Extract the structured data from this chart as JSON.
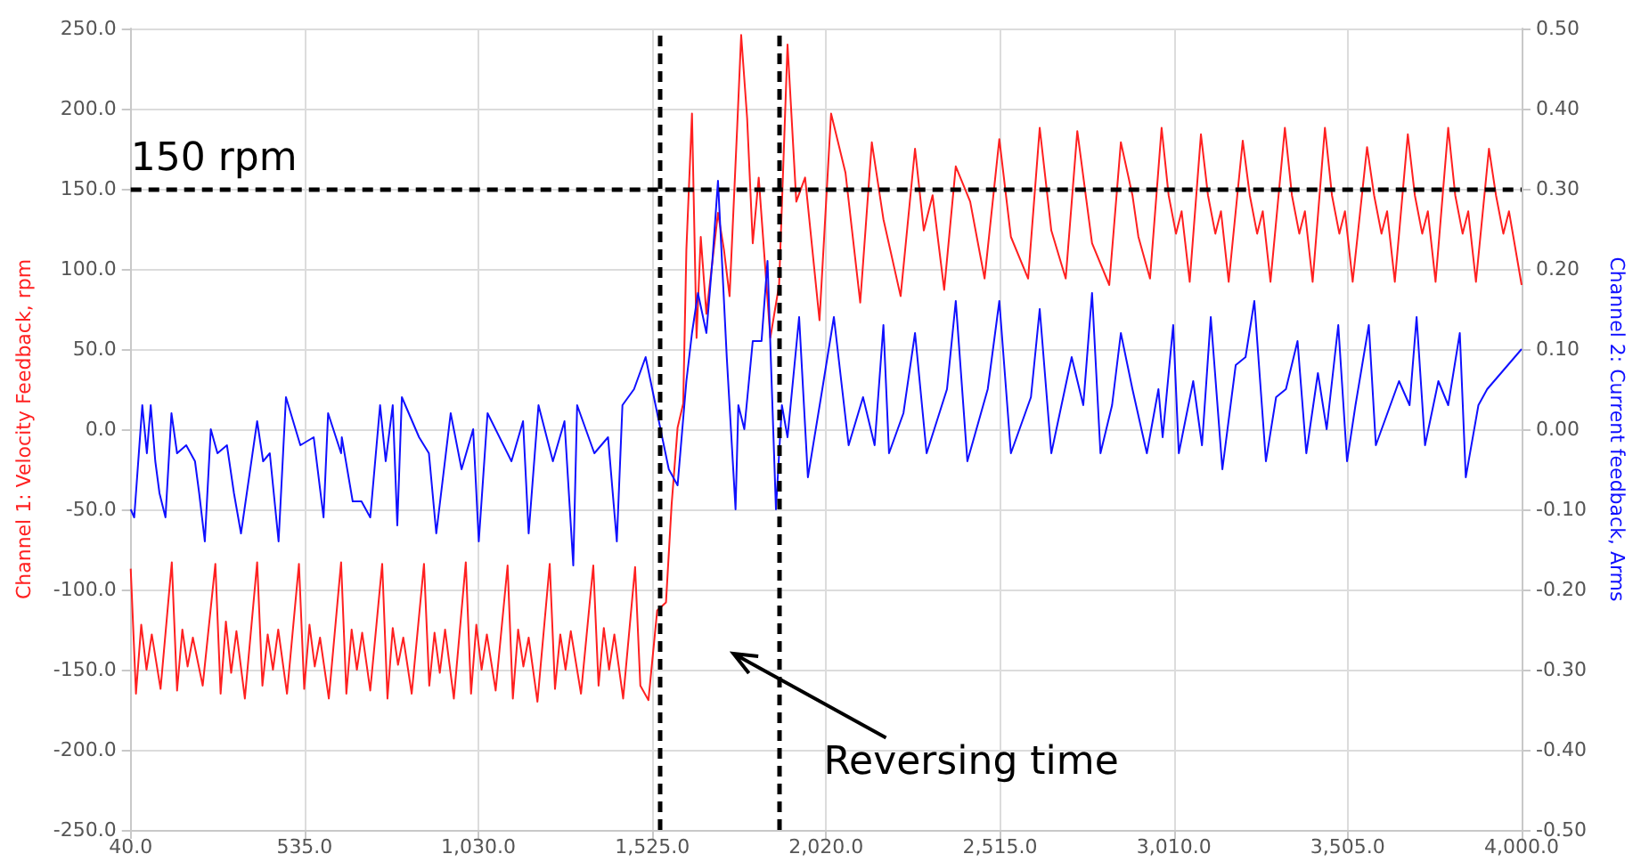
{
  "chart_data": {
    "type": "line",
    "xlabel": null,
    "ylabel": "Channel 1: Velocity Feedback, rpm",
    "y2label": "Channel 2: Current feedback, Arms",
    "annotations": [
      "Reversing time"
    ],
    "xlim": [
      40,
      4000
    ],
    "xticks": [
      {
        "value": 40,
        "label": "40.0"
      },
      {
        "value": 535,
        "label": "535.0"
      },
      {
        "value": 1030,
        "label": "1,030.0"
      },
      {
        "value": 1525,
        "label": "1,525.0"
      },
      {
        "value": 2020,
        "label": "2,020.0"
      },
      {
        "value": 2515,
        "label": "2,515.0"
      },
      {
        "value": 3010,
        "label": "3,010.0"
      },
      {
        "value": 3505,
        "label": "3,505.0"
      },
      {
        "value": 4000,
        "label": "4,000.0"
      }
    ],
    "ylim": [
      -250,
      250
    ],
    "yticks": [
      {
        "value": -250,
        "label": "-250.0"
      },
      {
        "value": -200,
        "label": "-200.0"
      },
      {
        "value": -150,
        "label": "-150.0"
      },
      {
        "value": -100,
        "label": "-100.0"
      },
      {
        "value": -50,
        "label": "-50.0"
      },
      {
        "value": 0,
        "label": "0.0"
      },
      {
        "value": 50,
        "label": "50.0"
      },
      {
        "value": 100,
        "label": "100.0"
      },
      {
        "value": 150,
        "label": "150.0"
      },
      {
        "value": 200,
        "label": "200.0"
      },
      {
        "value": 250,
        "label": "250.0"
      }
    ],
    "y2lim": [
      -0.5,
      0.5
    ],
    "y2ticks": [
      {
        "value": -0.5,
        "label": "-0.50"
      },
      {
        "value": -0.4,
        "label": "-0.40"
      },
      {
        "value": -0.3,
        "label": "-0.30"
      },
      {
        "value": -0.2,
        "label": "-0.20"
      },
      {
        "value": -0.1,
        "label": "-0.10"
      },
      {
        "value": 0,
        "label": "0.00"
      },
      {
        "value": 0.1,
        "label": "0.10"
      },
      {
        "value": 0.2,
        "label": "0.20"
      },
      {
        "value": 0.3,
        "label": "0.30"
      },
      {
        "value": 0.4,
        "label": "0.40"
      },
      {
        "value": 0.5,
        "label": "0.50"
      }
    ],
    "grid": true,
    "marker": "none",
    "line_style": "solid",
    "ref_lines": [
      {
        "axis": "y",
        "value": 150,
        "label": "150 rpm",
        "color": "#000000",
        "line_style": "dashed"
      },
      {
        "axis": "x",
        "value": 1545,
        "label": null,
        "color": "#000000",
        "line_style": "dashed"
      },
      {
        "axis": "x",
        "value": 1886,
        "label": null,
        "color": "#000000",
        "line_style": "dashed"
      }
    ],
    "series": [
      {
        "color": "#ff2020",
        "x": [
          40,
          55,
          70,
          85,
          100,
          125,
          157,
          172,
          187,
          202,
          217,
          245,
          281,
          296,
          311,
          326,
          341,
          365,
          400,
          415,
          430,
          445,
          460,
          485,
          519,
          534,
          549,
          564,
          579,
          604,
          639,
          654,
          669,
          684,
          699,
          722,
          756,
          771,
          786,
          801,
          816,
          840,
          875,
          890,
          905,
          920,
          935,
          960,
          994,
          1009,
          1024,
          1039,
          1054,
          1079,
          1113,
          1128,
          1143,
          1158,
          1173,
          1198,
          1233,
          1248,
          1263,
          1278,
          1293,
          1322,
          1357,
          1372,
          1387,
          1402,
          1417,
          1442,
          1476,
          1491,
          1514,
          1539,
          1564,
          1580,
          1597,
          1613,
          1622,
          1638,
          1651,
          1663,
          1679,
          1712,
          1729,
          1745,
          1767,
          1778,
          1795,
          1811,
          1828,
          1861,
          1886,
          1910,
          1935,
          1960,
          2001,
          2034,
          2075,
          2117,
          2150,
          2183,
          2232,
          2273,
          2298,
          2323,
          2356,
          2389,
          2430,
          2471,
          2513,
          2546,
          2595,
          2628,
          2661,
          2702,
          2735,
          2777,
          2826,
          2859,
          2892,
          2909,
          2942,
          2975,
          2995,
          3016,
          3032,
          3055,
          3087,
          3107,
          3128,
          3144,
          3166,
          3206,
          3226,
          3247,
          3263,
          3285,
          3326,
          3346,
          3367,
          3383,
          3405,
          3440,
          3460,
          3481,
          3497,
          3519,
          3560,
          3580,
          3601,
          3617,
          3639,
          3676,
          3696,
          3717,
          3733,
          3755,
          3791,
          3811,
          3832,
          3848,
          3870,
          3907,
          3927,
          3948,
          3964,
          4000
        ],
        "values": [
          -87,
          -165,
          -122,
          -150,
          -128,
          -162,
          -83,
          -163,
          -125,
          -148,
          -130,
          -160,
          -84,
          -165,
          -120,
          -152,
          -126,
          -168,
          -83,
          -160,
          -128,
          -150,
          -125,
          -165,
          -84,
          -162,
          -122,
          -148,
          -130,
          -168,
          -83,
          -165,
          -125,
          -150,
          -127,
          -163,
          -84,
          -168,
          -124,
          -147,
          -130,
          -165,
          -84,
          -160,
          -127,
          -152,
          -125,
          -168,
          -83,
          -165,
          -122,
          -150,
          -128,
          -163,
          -85,
          -168,
          -125,
          -148,
          -130,
          -170,
          -84,
          -162,
          -128,
          -150,
          -126,
          -165,
          -85,
          -160,
          -124,
          -150,
          -128,
          -168,
          -86,
          -160,
          -169,
          -113,
          -108,
          -47,
          1,
          16,
          112,
          197,
          57,
          120,
          72,
          135,
          112,
          83,
          190,
          246,
          194,
          116,
          157,
          57,
          90,
          240,
          142,
          157,
          68,
          197,
          160,
          79,
          179,
          131,
          83,
          175,
          124,
          146,
          87,
          164,
          142,
          94,
          181,
          120,
          94,
          188,
          124,
          94,
          186,
          116,
          90,
          179,
          146,
          120,
          94,
          188,
          146,
          122,
          136,
          92,
          184,
          146,
          122,
          136,
          92,
          180,
          146,
          122,
          136,
          92,
          188,
          146,
          122,
          136,
          92,
          188,
          146,
          122,
          136,
          92,
          176,
          146,
          122,
          136,
          92,
          184,
          146,
          122,
          136,
          92,
          188,
          146,
          122,
          136,
          92,
          175,
          146,
          122,
          136,
          90
        ]
      },
      {
        "color": "#1010ff",
        "axis": "y2",
        "x": [
          40,
          50,
          73,
          86,
          97,
          110,
          122,
          139,
          156,
          172,
          198,
          223,
          235,
          251,
          268,
          287,
          314,
          334,
          354,
          400,
          417,
          436,
          461,
          482,
          523,
          561,
          589,
          602,
          639,
          641,
          672,
          697,
          722,
          750,
          766,
          786,
          799,
          812,
          861,
          889,
          910,
          951,
          982,
          1015,
          1031,
          1056,
          1124,
          1157,
          1173,
          1201,
          1242,
          1275,
          1300,
          1311,
          1360,
          1399,
          1424,
          1440,
          1473,
          1506,
          1539,
          1572,
          1597,
          1622,
          1638,
          1655,
          1679,
          1696,
          1712,
          1737,
          1762,
          1770,
          1787,
          1811,
          1836,
          1853,
          1877,
          1894,
          1910,
          1943,
          1968,
          2009,
          2042,
          2084,
          2125,
          2158,
          2183,
          2199,
          2240,
          2273,
          2306,
          2364,
          2389,
          2422,
          2480,
          2513,
          2546,
          2603,
          2628,
          2661,
          2719,
          2752,
          2777,
          2801,
          2834,
          2859,
          2892,
          2933,
          2966,
          2978,
          3008,
          3024,
          3065,
          3090,
          3115,
          3148,
          3186,
          3214,
          3239,
          3272,
          3301,
          3329,
          3362,
          3387,
          3420,
          3445,
          3478,
          3503,
          3527,
          3565,
          3585,
          3651,
          3681,
          3701,
          3725,
          3763,
          3791,
          3824,
          3841,
          3877,
          3902,
          4000
        ],
        "values": [
          -0.1,
          -0.11,
          0.03,
          -0.03,
          0.03,
          -0.04,
          -0.08,
          -0.11,
          0.02,
          -0.03,
          -0.02,
          -0.04,
          -0.08,
          -0.14,
          0.0,
          -0.03,
          -0.02,
          -0.08,
          -0.13,
          0.01,
          -0.04,
          -0.03,
          -0.14,
          0.04,
          -0.02,
          -0.01,
          -0.11,
          0.02,
          -0.03,
          -0.01,
          -0.09,
          -0.09,
          -0.11,
          0.03,
          -0.04,
          0.03,
          -0.12,
          0.04,
          -0.01,
          -0.03,
          -0.13,
          0.02,
          -0.05,
          0.0,
          -0.14,
          0.02,
          -0.04,
          0.01,
          -0.13,
          0.03,
          -0.04,
          0.01,
          -0.17,
          0.03,
          -0.03,
          -0.01,
          -0.14,
          0.03,
          0.05,
          0.09,
          0.02,
          -0.05,
          -0.07,
          0.06,
          0.12,
          0.17,
          0.12,
          0.21,
          0.31,
          0.09,
          -0.1,
          0.03,
          0.0,
          0.11,
          0.11,
          0.21,
          -0.1,
          0.03,
          -0.01,
          0.14,
          -0.06,
          0.05,
          0.14,
          -0.02,
          0.04,
          -0.02,
          0.13,
          -0.03,
          0.02,
          0.12,
          -0.03,
          0.05,
          0.16,
          -0.04,
          0.05,
          0.16,
          -0.03,
          0.04,
          0.15,
          -0.03,
          0.09,
          0.03,
          0.17,
          -0.03,
          0.03,
          0.12,
          0.05,
          -0.03,
          0.05,
          -0.01,
          0.13,
          -0.03,
          0.06,
          -0.02,
          0.14,
          -0.05,
          0.08,
          0.09,
          0.16,
          -0.04,
          0.04,
          0.05,
          0.11,
          -0.03,
          0.07,
          0.0,
          0.13,
          -0.04,
          0.03,
          0.13,
          -0.02,
          0.06,
          0.03,
          0.14,
          -0.02,
          0.06,
          0.03,
          0.12,
          -0.06,
          0.03,
          0.05,
          0.1
        ]
      }
    ]
  }
}
